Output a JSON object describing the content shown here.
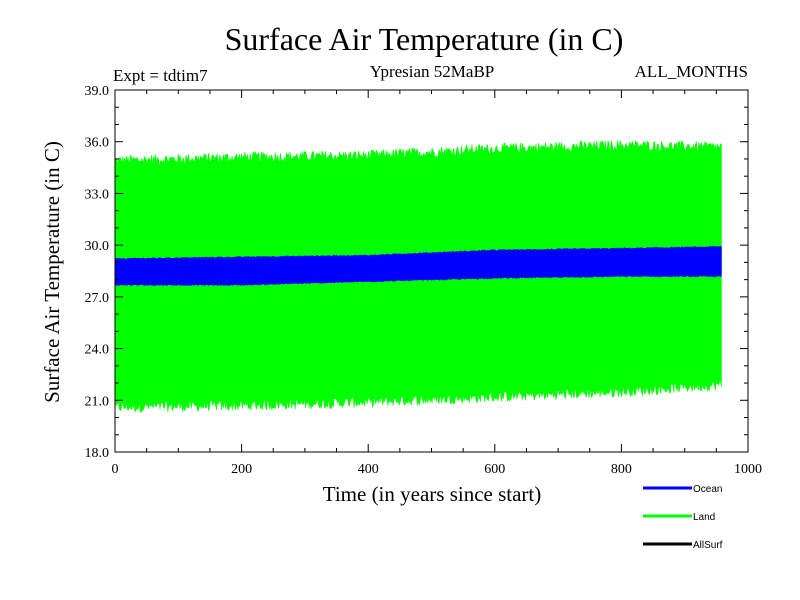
{
  "chart_data": {
    "type": "line",
    "title": "Surface Air Temperature (in C)",
    "subtitle_left": "Expt = tdtim7",
    "subtitle_center": "Ypresian  52MaBP",
    "subtitle_right": "ALL_MONTHS",
    "xlabel": "Time (in years since start)",
    "ylabel": "Surface Air Temperature (in C)",
    "xlim": [
      0,
      1000
    ],
    "ylim": [
      18.0,
      39.0
    ],
    "xticks": [
      0,
      200,
      400,
      600,
      800,
      1000
    ],
    "xtick_labels": [
      "0",
      "200",
      "400",
      "600",
      "800",
      "1000"
    ],
    "yticks": [
      18.0,
      21.0,
      24.0,
      27.0,
      30.0,
      33.0,
      36.0,
      39.0
    ],
    "ytick_labels": [
      "18.0",
      "21.0",
      "24.0",
      "27.0",
      "30.0",
      "33.0",
      "36.0",
      "39.0"
    ],
    "series": [
      {
        "name": "Ocean",
        "color": "#0000ff",
        "x_range": [
          0,
          958
        ],
        "envelope_upper": [
          [
            0,
            29.2
          ],
          [
            200,
            29.3
          ],
          [
            400,
            29.4
          ],
          [
            600,
            29.7
          ],
          [
            800,
            29.8
          ],
          [
            958,
            29.9
          ]
        ],
        "envelope_lower": [
          [
            0,
            27.7
          ],
          [
            200,
            27.7
          ],
          [
            400,
            27.9
          ],
          [
            600,
            28.1
          ],
          [
            800,
            28.2
          ],
          [
            958,
            28.2
          ]
        ]
      },
      {
        "name": "Land",
        "color": "#00ff00",
        "x_range": [
          0,
          958
        ],
        "envelope_upper": [
          [
            0,
            34.8
          ],
          [
            200,
            35.0
          ],
          [
            400,
            35.1
          ],
          [
            600,
            35.5
          ],
          [
            800,
            35.7
          ],
          [
            958,
            35.6
          ]
        ],
        "envelope_lower": [
          [
            0,
            20.7
          ],
          [
            200,
            20.8
          ],
          [
            400,
            21.0
          ],
          [
            600,
            21.3
          ],
          [
            800,
            21.6
          ],
          [
            958,
            22.0
          ]
        ]
      },
      {
        "name": "AllSurf",
        "color": "#000000",
        "values": []
      }
    ],
    "legend": [
      {
        "label": "Ocean",
        "color": "#0000ff"
      },
      {
        "label": "Land",
        "color": "#00ff00"
      },
      {
        "label": "AllSurf",
        "color": "#000000"
      }
    ],
    "legend_position": "bottom-right"
  }
}
